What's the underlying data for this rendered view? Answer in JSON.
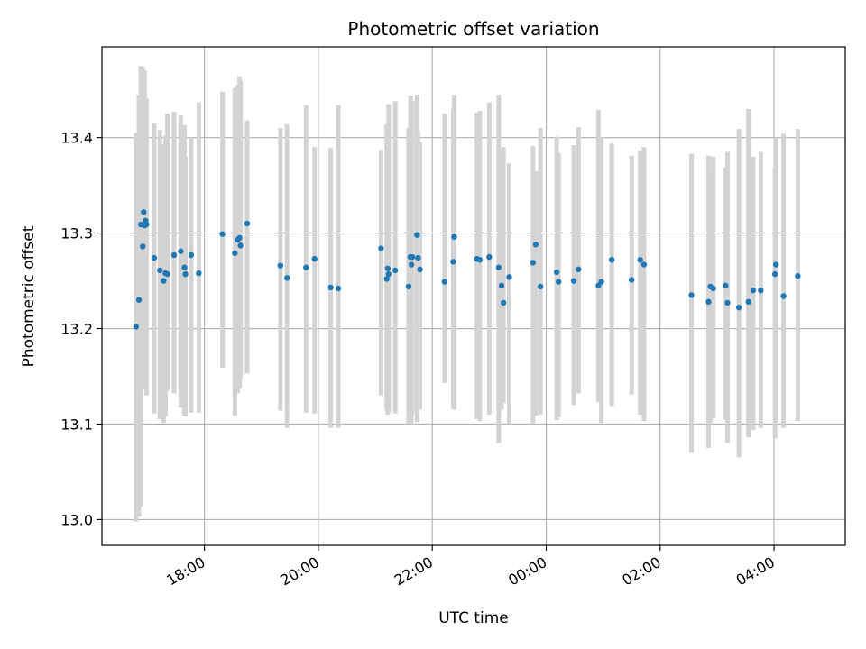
{
  "chart_data": {
    "type": "scatter",
    "title": "Photometric offset variation",
    "xlabel": "UTC time",
    "ylabel": "Photometric offset",
    "x_unit": "UTC time",
    "x_ticks": [
      "18:00",
      "20:00",
      "22:00",
      "00:00",
      "02:00",
      "04:00"
    ],
    "y_ticks": [
      "13.0",
      "13.1",
      "13.2",
      "13.3",
      "13.4"
    ],
    "xlim": [
      "16:12",
      "05:15"
    ],
    "ylim": [
      12.973,
      13.495
    ],
    "grid": true,
    "colors": {
      "points": "#1f77b4",
      "errorbars": "#d3d3d3",
      "grid": "#b0b0b0"
    },
    "series": [
      {
        "x": [
          "16:48",
          "16:51",
          "16:53",
          "16:55",
          "16:56",
          "16:57",
          "16:58",
          "16:59",
          "17:07",
          "17:13",
          "17:17",
          "17:19",
          "17:21",
          "17:28",
          "17:35",
          "17:39",
          "17:40",
          "17:46",
          "17:54",
          "18:19",
          "18:32",
          "18:35",
          "18:37",
          "18:38",
          "18:45",
          "19:20",
          "19:27",
          "19:47",
          "19:56",
          "20:13",
          "20:21",
          "21:06",
          "21:12",
          "21:13",
          "21:14",
          "21:21",
          "21:35",
          "21:37",
          "21:38",
          "21:39",
          "21:44",
          "21:45",
          "21:47",
          "22:13",
          "22:22",
          "22:23",
          "22:47",
          "22:50",
          "23:00",
          "23:10",
          "23:13",
          "23:15",
          "23:21",
          "23:46",
          "23:49",
          "23:54",
          "00:11",
          "00:13",
          "00:29",
          "00:34",
          "00:55",
          "00:58",
          "01:09",
          "01:30",
          "01:39",
          "01:43",
          "02:33",
          "02:51",
          "02:53",
          "02:56",
          "03:09",
          "03:11",
          "03:23",
          "03:33",
          "03:38",
          "03:46",
          "04:01",
          "04:02",
          "04:10",
          "04:25"
        ],
        "y": [
          13.202,
          13.23,
          13.309,
          13.286,
          13.322,
          13.308,
          13.313,
          13.309,
          13.274,
          13.261,
          13.25,
          13.258,
          13.257,
          13.277,
          13.281,
          13.264,
          13.257,
          13.277,
          13.258,
          13.299,
          13.279,
          13.293,
          13.295,
          13.287,
          13.31,
          13.266,
          13.253,
          13.264,
          13.273,
          13.243,
          13.242,
          13.284,
          13.252,
          13.263,
          13.257,
          13.261,
          13.244,
          13.275,
          13.267,
          13.275,
          13.298,
          13.274,
          13.262,
          13.249,
          13.27,
          13.296,
          13.273,
          13.272,
          13.275,
          13.264,
          13.245,
          13.227,
          13.254,
          13.269,
          13.288,
          13.244,
          13.259,
          13.249,
          13.25,
          13.262,
          13.245,
          13.249,
          13.272,
          13.251,
          13.272,
          13.267,
          13.235,
          13.228,
          13.244,
          13.242,
          13.245,
          13.227,
          13.222,
          13.228,
          13.24,
          13.24,
          13.257,
          13.267,
          13.234,
          13.255
        ],
        "err_low": [
          13.405,
          13.445,
          13.475,
          13.474,
          13.428,
          13.47,
          13.415,
          13.441,
          13.415,
          13.408,
          13.393,
          13.402,
          13.425,
          13.427,
          13.423,
          13.413,
          13.38,
          13.4,
          13.437,
          13.448,
          13.452,
          13.455,
          13.464,
          13.459,
          13.418,
          13.41,
          13.414,
          13.434,
          13.39,
          13.389,
          13.434,
          13.387,
          13.414,
          13.404,
          13.435,
          13.438,
          13.41,
          13.444,
          13.406,
          13.438,
          13.445,
          13.407,
          13.395,
          13.425,
          13.43,
          13.445,
          13.426,
          13.428,
          13.437,
          13.445,
          13.384,
          13.39,
          13.373,
          13.391,
          13.365,
          13.41,
          13.401,
          13.384,
          13.392,
          13.411,
          13.429,
          13.4,
          13.394,
          13.381,
          13.386,
          13.39,
          13.383,
          13.381,
          13.363,
          13.38,
          13.369,
          13.385,
          13.409,
          13.43,
          13.38,
          13.385,
          13.369,
          13.4,
          13.404,
          13.409
        ],
        "err_high": [
          12.998,
          13.003,
          13.014,
          13.136,
          13.14,
          13.145,
          13.15,
          13.13,
          13.111,
          13.105,
          13.101,
          13.108,
          13.135,
          13.132,
          13.117,
          13.109,
          13.108,
          13.112,
          13.112,
          13.159,
          13.109,
          13.132,
          13.137,
          13.148,
          13.153,
          13.114,
          13.096,
          13.112,
          13.111,
          13.096,
          13.096,
          13.13,
          13.115,
          13.11,
          13.112,
          13.111,
          13.101,
          13.1,
          13.101,
          13.11,
          13.102,
          13.121,
          13.115,
          13.143,
          13.117,
          13.115,
          13.105,
          13.103,
          13.11,
          13.08,
          13.115,
          13.122,
          13.1,
          13.1,
          13.109,
          13.11,
          13.104,
          13.107,
          13.12,
          13.132,
          13.123,
          13.101,
          13.119,
          13.131,
          13.11,
          13.103,
          13.07,
          13.075,
          13.101,
          13.106,
          13.105,
          13.08,
          13.065,
          13.086,
          13.094,
          13.096,
          13.085,
          13.102,
          13.096,
          13.103
        ]
      }
    ]
  }
}
